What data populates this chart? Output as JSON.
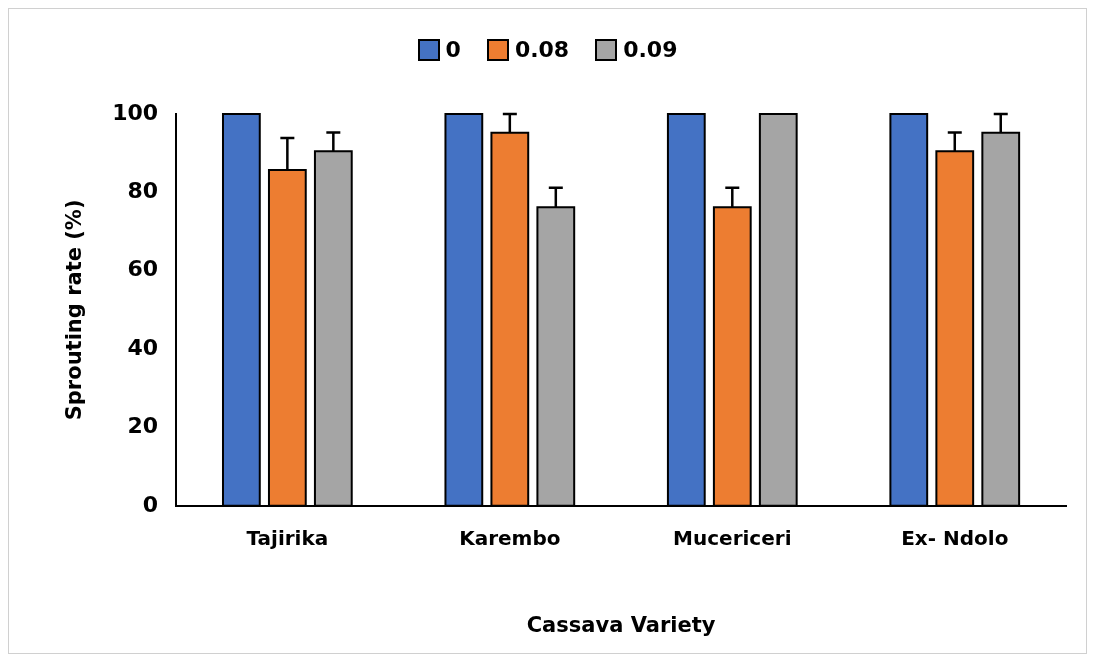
{
  "chart_data": {
    "type": "bar",
    "xlabel": "Cassava Variety",
    "ylabel": "Sprouting rate (%)",
    "categories": [
      "Tajirika",
      "Karembo",
      "Mucericeri",
      "Ex- Ndolo"
    ],
    "series": [
      {
        "name": "0",
        "color": "#4472c4",
        "values": [
          100,
          100,
          100,
          100
        ]
      },
      {
        "name": "0.08",
        "color": "#ed7d31",
        "values": [
          85.7,
          95.2,
          76.2,
          90.5
        ],
        "errors": [
          [
            85.7,
            93.9
          ],
          [
            95.2,
            100
          ],
          [
            76.2,
            81.2
          ],
          [
            90.5,
            95.3
          ]
        ]
      },
      {
        "name": "0.09",
        "color": "#a5a5a5",
        "values": [
          90.5,
          76.2,
          100,
          95.2
        ],
        "errors": [
          [
            90.5,
            95.3
          ],
          [
            76.2,
            81.2
          ],
          null,
          [
            95.2,
            100
          ]
        ]
      }
    ],
    "ylim": [
      0,
      100
    ],
    "yticks": [
      0,
      20,
      40,
      60,
      80,
      100
    ],
    "grid": false,
    "legend": "top"
  }
}
